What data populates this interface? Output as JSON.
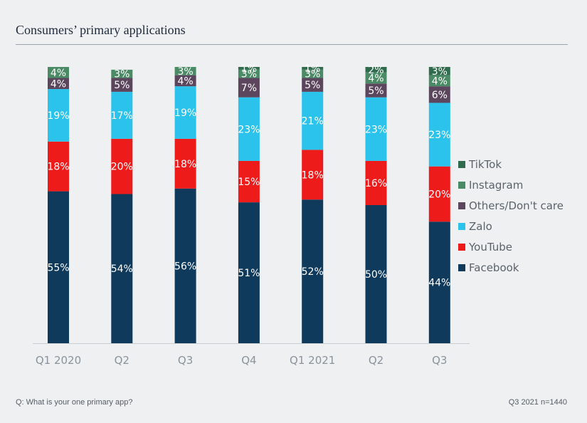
{
  "chart_data": {
    "type": "bar",
    "stacked": true,
    "title": "Consumers’ primary applications",
    "categories": [
      "Q1 2020",
      "Q2",
      "Q3",
      "Q4",
      "Q1 2021",
      "Q2",
      "Q3"
    ],
    "series": [
      {
        "name": "Facebook",
        "color": "#0f3a5c",
        "values": [
          55,
          54,
          56,
          51,
          52,
          50,
          44
        ]
      },
      {
        "name": "YouTube",
        "color": "#ee1b1b",
        "values": [
          18,
          20,
          18,
          15,
          18,
          16,
          20
        ]
      },
      {
        "name": "Zalo",
        "color": "#2bc3ec",
        "values": [
          19,
          17,
          19,
          23,
          21,
          23,
          23
        ]
      },
      {
        "name": "Others/Don't care",
        "color": "#5c465e",
        "values": [
          4,
          5,
          4,
          7,
          5,
          5,
          6
        ]
      },
      {
        "name": "Instagram",
        "color": "#4a8b66",
        "values": [
          4,
          3,
          3,
          3,
          3,
          4,
          4
        ]
      },
      {
        "name": "TikTok",
        "color": "#2f6b4c",
        "values": [
          0,
          0,
          0,
          1,
          1,
          2,
          3
        ]
      }
    ],
    "value_suffix": "%",
    "ylim": [
      0,
      100
    ],
    "legend_position": "right",
    "xlabel": "",
    "ylabel": ""
  },
  "footer": {
    "question": "Q: What is your one primary app?",
    "sample": "Q3 2021  n=1440"
  }
}
